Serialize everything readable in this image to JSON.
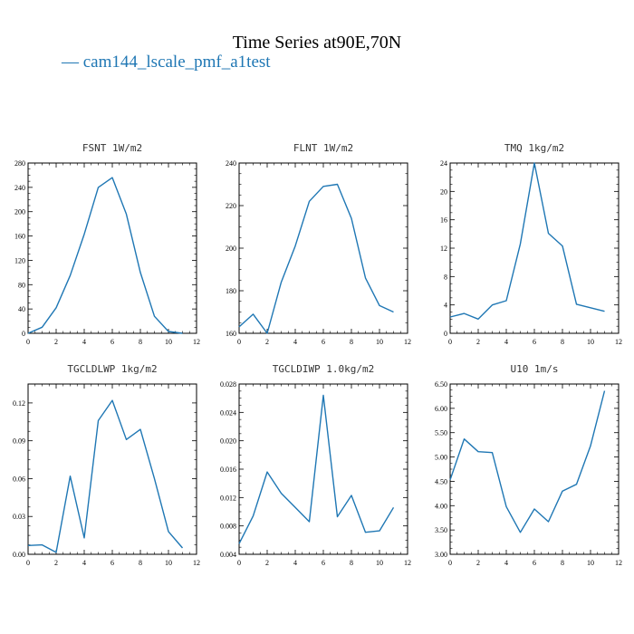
{
  "figure": {
    "title": "Time Series at90E,70N",
    "legend_label": "— cam144_lscale_pmf_a1test",
    "series_color": "#1f77b4"
  },
  "chart_data": [
    {
      "type": "line",
      "title": "FSNT   1W/m2",
      "x": [
        0,
        1,
        2,
        3,
        4,
        5,
        6,
        7,
        8,
        9,
        10,
        11
      ],
      "series": [
        {
          "values": [
            0,
            10,
            42,
            95,
            163,
            240,
            256,
            196,
            100,
            28,
            3,
            0
          ]
        }
      ],
      "xlim": [
        0,
        12
      ],
      "ylim": [
        0,
        280
      ],
      "xticks": [
        0,
        2,
        4,
        6,
        8,
        10,
        12
      ],
      "yticks": [
        0,
        40,
        80,
        120,
        160,
        200,
        240,
        280
      ],
      "ytick_labels": [
        "0",
        "40",
        "80",
        "120",
        "160",
        "200",
        "240",
        "280"
      ]
    },
    {
      "type": "line",
      "title": "FLNT   1W/m2",
      "x": [
        0,
        1,
        2,
        3,
        4,
        5,
        6,
        7,
        8,
        9,
        10,
        11
      ],
      "series": [
        {
          "values": [
            163,
            169,
            160,
            184,
            201,
            222,
            229,
            230,
            214,
            186,
            173,
            170
          ]
        }
      ],
      "xlim": [
        0,
        12
      ],
      "ylim": [
        160,
        240
      ],
      "xticks": [
        0,
        2,
        4,
        6,
        8,
        10,
        12
      ],
      "yticks": [
        160,
        180,
        200,
        220,
        240
      ],
      "ytick_labels": [
        "160",
        "180",
        "200",
        "220",
        "240"
      ]
    },
    {
      "type": "line",
      "title": "TMQ   1kg/m2",
      "x": [
        0,
        1,
        2,
        3,
        4,
        5,
        6,
        7,
        8,
        9,
        10,
        11
      ],
      "series": [
        {
          "values": [
            2.3,
            2.8,
            2.0,
            4.0,
            4.6,
            12.6,
            24.0,
            14.1,
            12.3,
            4.1,
            3.6,
            3.1
          ]
        }
      ],
      "xlim": [
        0,
        12
      ],
      "ylim": [
        0,
        24
      ],
      "xticks": [
        0,
        2,
        4,
        6,
        8,
        10,
        12
      ],
      "yticks": [
        0,
        4,
        8,
        12,
        16,
        20,
        24
      ],
      "ytick_labels": [
        "0",
        "4",
        "8",
        "12",
        "16",
        "20",
        "24"
      ]
    },
    {
      "type": "line",
      "title": "TGCLDLWP   1kg/m2",
      "x": [
        0,
        1,
        2,
        3,
        4,
        5,
        6,
        7,
        8,
        9,
        10,
        11
      ],
      "series": [
        {
          "values": [
            0.007,
            0.0075,
            0.0015,
            0.062,
            0.013,
            0.106,
            0.122,
            0.091,
            0.099,
            0.06,
            0.018,
            0.005
          ]
        }
      ],
      "xlim": [
        0,
        12
      ],
      "ylim": [
        0,
        0.135
      ],
      "xticks": [
        0,
        2,
        4,
        6,
        8,
        10,
        12
      ],
      "yticks": [
        0,
        0.03,
        0.06,
        0.09,
        0.12
      ],
      "ytick_labels": [
        "0.00",
        "0.03",
        "0.06",
        "0.09",
        "0.12"
      ]
    },
    {
      "type": "line",
      "title": "TGCLDIWP   1.0kg/m2",
      "x": [
        0,
        1,
        2,
        3,
        4,
        5,
        6,
        7,
        8,
        9,
        10,
        11
      ],
      "series": [
        {
          "values": [
            0.0055,
            0.0094,
            0.0156,
            0.0126,
            0.0106,
            0.0086,
            0.0264,
            0.0093,
            0.0123,
            0.0071,
            0.0073,
            0.0106
          ]
        }
      ],
      "xlim": [
        0,
        12
      ],
      "ylim": [
        0.004,
        0.028
      ],
      "xticks": [
        0,
        2,
        4,
        6,
        8,
        10,
        12
      ],
      "yticks": [
        0.004,
        0.008,
        0.012,
        0.016,
        0.02,
        0.024,
        0.028
      ],
      "ytick_labels": [
        "0.004",
        "0.008",
        "0.012",
        "0.016",
        "0.020",
        "0.024",
        "0.028"
      ]
    },
    {
      "type": "line",
      "title": "U10   1m/s",
      "x": [
        0,
        1,
        2,
        3,
        4,
        5,
        6,
        7,
        8,
        9,
        10,
        11
      ],
      "series": [
        {
          "values": [
            4.53,
            5.37,
            5.11,
            5.09,
            3.98,
            3.45,
            3.93,
            3.67,
            4.3,
            4.44,
            5.23,
            6.36
          ]
        }
      ],
      "xlim": [
        0,
        12
      ],
      "ylim": [
        3.0,
        6.5
      ],
      "xticks": [
        0,
        2,
        4,
        6,
        8,
        10,
        12
      ],
      "yticks": [
        3.0,
        3.5,
        4.0,
        4.5,
        5.0,
        5.5,
        6.0,
        6.5
      ],
      "ytick_labels": [
        "3.00",
        "3.50",
        "4.00",
        "4.50",
        "5.00",
        "5.50",
        "6.00",
        "6.50"
      ]
    }
  ]
}
